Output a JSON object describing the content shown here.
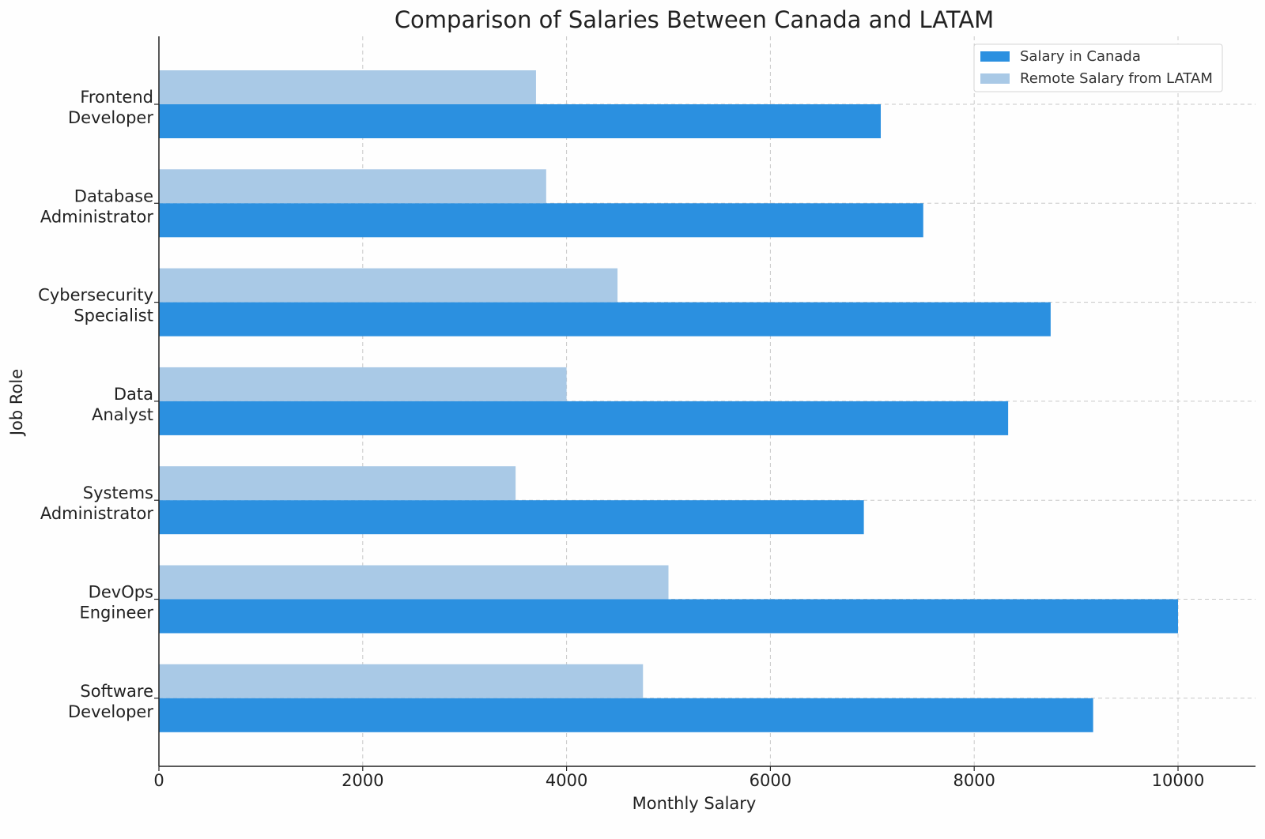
{
  "chart_data": {
    "type": "bar",
    "orientation": "horizontal",
    "title": "Comparison of Salaries Between Canada and LATAM",
    "xlabel": "Monthly Salary",
    "ylabel": "Job Role",
    "xlim": [
      0,
      10500
    ],
    "xticks": [
      0,
      2000,
      4000,
      6000,
      8000,
      10000
    ],
    "grid": true,
    "legend_position": "top-right",
    "categories": [
      [
        "Frontend",
        "Developer"
      ],
      [
        "Database",
        "Administrator"
      ],
      [
        "Cybersecurity",
        "Specialist"
      ],
      [
        "Data",
        "Analyst"
      ],
      [
        "Systems",
        "Administrator"
      ],
      [
        "DevOps",
        "Engineer"
      ],
      [
        "Software",
        "Developer"
      ]
    ],
    "series": [
      {
        "name": "Salary in Canada",
        "color": "#2b90e0",
        "values": [
          7083,
          7500,
          8750,
          8333,
          6917,
          10000,
          9167
        ]
      },
      {
        "name": "Remote Salary from LATAM",
        "color": "#a9c9e6",
        "values": [
          3700,
          3800,
          4500,
          4000,
          3500,
          5000,
          4750
        ]
      }
    ]
  }
}
